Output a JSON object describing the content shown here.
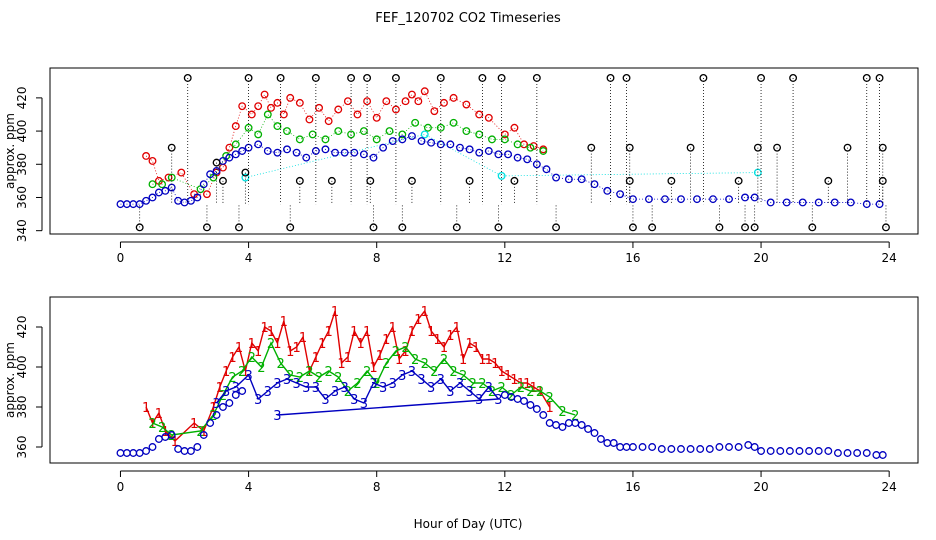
{
  "chart_data": [
    {
      "type": "scatter",
      "title": "FEF_120702  CO2 Timeseries",
      "xlabel": "",
      "ylabel": "approx. ppm",
      "xlim": [
        -2.2,
        24.9
      ],
      "ylim": [
        338,
        438
      ],
      "xticks": [
        0,
        4,
        8,
        12,
        16,
        20,
        24
      ],
      "yticks": [
        340,
        360,
        380,
        400,
        420
      ],
      "series": [
        {
          "color": "#e00000",
          "marker": "circle",
          "x": [
            0.8,
            1.0,
            1.2,
            1.5,
            1.9,
            2.3,
            2.7,
            3.0,
            3.2,
            3.4,
            3.6,
            3.8,
            4.1,
            4.3,
            4.5,
            4.7,
            4.9,
            5.1,
            5.3,
            5.6,
            5.9,
            6.2,
            6.5,
            6.8,
            7.1,
            7.4,
            7.7,
            8.0,
            8.3,
            8.6,
            8.9,
            9.1,
            9.3,
            9.5,
            9.8,
            10.1,
            10.4,
            10.8,
            11.2,
            11.5,
            12.0,
            12.3,
            12.6,
            12.9,
            13.2
          ],
          "y": [
            385,
            382,
            370,
            372,
            375,
            362,
            362,
            375,
            378,
            390,
            403,
            415,
            410,
            415,
            422,
            414,
            417,
            410,
            420,
            417,
            407,
            414,
            406,
            413,
            418,
            410,
            418,
            408,
            418,
            413,
            418,
            422,
            418,
            424,
            412,
            417,
            420,
            416,
            410,
            408,
            398,
            402,
            392,
            391,
            389
          ]
        },
        {
          "color": "#00b000",
          "marker": "circle",
          "x": [
            1.0,
            1.3,
            1.6,
            2.5,
            2.9,
            3.3,
            3.6,
            4.0,
            4.3,
            4.6,
            4.9,
            5.2,
            5.6,
            6.0,
            6.4,
            6.8,
            7.2,
            7.6,
            8.0,
            8.4,
            8.8,
            9.2,
            9.6,
            10.0,
            10.4,
            10.8,
            11.2,
            11.6,
            12.0,
            12.4,
            12.8,
            13.2
          ],
          "y": [
            368,
            368,
            372,
            365,
            372,
            385,
            392,
            402,
            398,
            410,
            403,
            400,
            395,
            398,
            395,
            400,
            398,
            400,
            395,
            400,
            398,
            405,
            402,
            402,
            405,
            400,
            398,
            395,
            395,
            392,
            390,
            388
          ]
        },
        {
          "color": "#00e0e0",
          "marker": "circle",
          "x": [
            3.9,
            9.5,
            11.9,
            19.9
          ],
          "y": [
            372,
            398,
            373,
            375
          ]
        },
        {
          "color": "#0000c0",
          "marker": "circle",
          "x": [
            0.0,
            0.2,
            0.4,
            0.6,
            0.8,
            1.0,
            1.2,
            1.4,
            1.6,
            1.8,
            2.0,
            2.2,
            2.4,
            2.6,
            2.8,
            3.0,
            3.2,
            3.4,
            3.6,
            3.8,
            4.0,
            4.3,
            4.6,
            4.9,
            5.2,
            5.5,
            5.8,
            6.1,
            6.4,
            6.7,
            7.0,
            7.3,
            7.6,
            7.9,
            8.2,
            8.5,
            8.8,
            9.1,
            9.4,
            9.7,
            10.0,
            10.3,
            10.6,
            10.9,
            11.2,
            11.5,
            11.8,
            12.1,
            12.4,
            12.7,
            13.0,
            13.3,
            13.6,
            14.0,
            14.4,
            14.8,
            15.2,
            15.6,
            16.0,
            16.5,
            17.0,
            17.5,
            18.0,
            18.5,
            19.0,
            19.5,
            19.8,
            20.3,
            20.8,
            21.3,
            21.8,
            22.3,
            22.8,
            23.3,
            23.7
          ],
          "y": [
            356,
            356,
            356,
            356,
            358,
            360,
            363,
            364,
            366,
            358,
            357,
            358,
            360,
            368,
            374,
            376,
            382,
            384,
            386,
            388,
            390,
            392,
            388,
            387,
            389,
            387,
            384,
            388,
            389,
            387,
            387,
            387,
            386,
            384,
            390,
            394,
            395,
            397,
            394,
            393,
            392,
            392,
            390,
            389,
            387,
            388,
            386,
            386,
            384,
            383,
            380,
            377,
            372,
            371,
            371,
            368,
            364,
            362,
            359,
            359,
            359,
            359,
            359,
            359,
            359,
            360,
            360,
            357,
            357,
            357,
            357,
            357,
            357,
            356,
            356
          ]
        },
        {
          "color": "#000000",
          "marker": "circle",
          "x": [
            0.6,
            1.6,
            2.1,
            2.7,
            3.0,
            3.2,
            3.7,
            3.9,
            4.0,
            5.0,
            5.3,
            5.6,
            6.1,
            6.6,
            7.2,
            7.7,
            7.8,
            7.9,
            8.6,
            8.8,
            9.1,
            10.0,
            10.5,
            10.9,
            11.3,
            11.8,
            11.9,
            12.3,
            13.0,
            13.6,
            14.7,
            15.3,
            15.8,
            15.9,
            15.9,
            16.0,
            16.6,
            17.2,
            17.8,
            18.2,
            18.7,
            19.3,
            19.5,
            19.8,
            19.9,
            20.0,
            20.5,
            21.0,
            21.6,
            22.1,
            22.7,
            23.3,
            23.7,
            23.8,
            23.8,
            23.9
          ],
          "y": [
            342,
            390,
            432,
            342,
            381,
            370,
            342,
            375,
            432,
            432,
            342,
            370,
            432,
            370,
            432,
            432,
            370,
            342,
            432,
            342,
            370,
            432,
            342,
            370,
            432,
            342,
            432,
            370,
            432,
            342,
            390,
            432,
            432,
            390,
            370,
            342,
            342,
            370,
            390,
            432,
            342,
            370,
            342,
            342,
            390,
            432,
            390,
            432,
            342,
            370,
            390,
            432,
            432,
            390,
            370,
            342
          ]
        }
      ]
    },
    {
      "type": "scatter",
      "title": "",
      "xlabel": "Hour of Day (UTC)",
      "ylabel": "approx. ppm",
      "xlim": [
        -2.2,
        24.9
      ],
      "ylim": [
        352,
        435
      ],
      "xticks": [
        0,
        4,
        8,
        12,
        16,
        20,
        24
      ],
      "yticks": [
        360,
        380,
        400,
        420
      ],
      "series": [
        {
          "name": "1",
          "color": "#e00000",
          "marker": "1",
          "x": [
            0.8,
            1.0,
            1.2,
            1.4,
            1.7,
            2.3,
            2.6,
            2.9,
            3.1,
            3.3,
            3.5,
            3.7,
            3.9,
            4.1,
            4.3,
            4.5,
            4.7,
            4.9,
            5.1,
            5.3,
            5.5,
            5.7,
            5.9,
            6.1,
            6.3,
            6.5,
            6.7,
            6.9,
            7.1,
            7.3,
            7.5,
            7.7,
            7.9,
            8.1,
            8.3,
            8.5,
            8.7,
            8.9,
            9.1,
            9.3,
            9.5,
            9.7,
            9.9,
            10.1,
            10.3,
            10.5,
            10.7,
            10.9,
            11.1,
            11.3,
            11.5,
            11.7,
            11.9,
            12.1,
            12.3,
            12.5,
            12.7,
            12.9,
            13.1,
            13.4
          ],
          "y": [
            380,
            372,
            377,
            368,
            363,
            372,
            368,
            380,
            390,
            398,
            405,
            410,
            398,
            412,
            408,
            420,
            418,
            412,
            423,
            408,
            410,
            415,
            398,
            405,
            412,
            418,
            428,
            402,
            405,
            418,
            412,
            418,
            400,
            406,
            414,
            420,
            404,
            408,
            418,
            424,
            428,
            418,
            414,
            410,
            416,
            420,
            404,
            412,
            410,
            404,
            404,
            402,
            398,
            396,
            394,
            392,
            392,
            390,
            388,
            380
          ]
        },
        {
          "name": "2",
          "color": "#00b000",
          "marker": "2",
          "x": [
            1.0,
            1.3,
            1.6,
            2.5,
            2.9,
            3.2,
            3.5,
            3.8,
            4.1,
            4.4,
            4.7,
            5.0,
            5.3,
            5.6,
            5.9,
            6.2,
            6.5,
            6.8,
            7.1,
            7.4,
            7.7,
            8.0,
            8.3,
            8.6,
            8.9,
            9.2,
            9.5,
            9.8,
            10.1,
            10.4,
            10.7,
            11.0,
            11.3,
            11.6,
            11.9,
            12.2,
            12.5,
            12.8,
            13.1,
            13.4,
            13.8,
            14.2
          ],
          "y": [
            372,
            370,
            366,
            368,
            376,
            386,
            395,
            398,
            405,
            400,
            412,
            402,
            396,
            395,
            398,
            395,
            398,
            395,
            388,
            392,
            398,
            392,
            402,
            408,
            410,
            404,
            402,
            398,
            404,
            398,
            396,
            392,
            392,
            388,
            390,
            386,
            390,
            388,
            388,
            385,
            378,
            376
          ]
        },
        {
          "name": "3",
          "color": "#0000c0",
          "marker": "3",
          "x": [
            3.0,
            3.3,
            3.6,
            4.0,
            4.3,
            4.6,
            4.9,
            5.2,
            5.5,
            5.8,
            6.1,
            6.4,
            6.7,
            7.0,
            7.3,
            7.6,
            7.9,
            8.2,
            8.5,
            8.8,
            9.1,
            9.4,
            9.7,
            10.0,
            10.3,
            10.6,
            10.9,
            11.2,
            11.5,
            11.8,
            4.9
          ],
          "y": [
            382,
            388,
            390,
            396,
            384,
            388,
            392,
            394,
            392,
            390,
            390,
            384,
            388,
            390,
            384,
            382,
            392,
            390,
            392,
            396,
            398,
            394,
            390,
            394,
            388,
            392,
            388,
            384,
            390,
            384,
            376
          ]
        },
        {
          "color": "#0000c0",
          "marker": "circle",
          "x": [
            0.0,
            0.2,
            0.4,
            0.6,
            0.8,
            1.0,
            1.2,
            1.4,
            1.6,
            1.8,
            2.0,
            2.2,
            2.4,
            2.6,
            2.8,
            3.0,
            3.2,
            3.4,
            3.6,
            3.8,
            12.0,
            12.2,
            12.4,
            12.6,
            12.8,
            13.0,
            13.2,
            13.4,
            13.6,
            13.8,
            14.0,
            14.2,
            14.4,
            14.6,
            14.8,
            15.0,
            15.2,
            15.4,
            15.6,
            15.8,
            16.0,
            16.3,
            16.6,
            16.9,
            17.2,
            17.5,
            17.8,
            18.1,
            18.4,
            18.7,
            19.0,
            19.3,
            19.6,
            19.8,
            20.0,
            20.3,
            20.6,
            20.9,
            21.2,
            21.5,
            21.8,
            22.1,
            22.4,
            22.7,
            23.0,
            23.3,
            23.6,
            23.8
          ],
          "y": [
            357,
            357,
            357,
            357,
            358,
            360,
            364,
            365,
            366,
            359,
            358,
            358,
            360,
            366,
            372,
            376,
            380,
            382,
            386,
            388,
            386,
            385,
            384,
            383,
            381,
            379,
            376,
            372,
            371,
            370,
            372,
            372,
            371,
            369,
            367,
            364,
            362,
            362,
            360,
            360,
            360,
            360,
            360,
            359,
            359,
            359,
            359,
            359,
            359,
            360,
            360,
            360,
            361,
            360,
            358,
            358,
            358,
            358,
            358,
            358,
            358,
            358,
            357,
            357,
            357,
            357,
            356,
            356
          ]
        }
      ]
    }
  ]
}
